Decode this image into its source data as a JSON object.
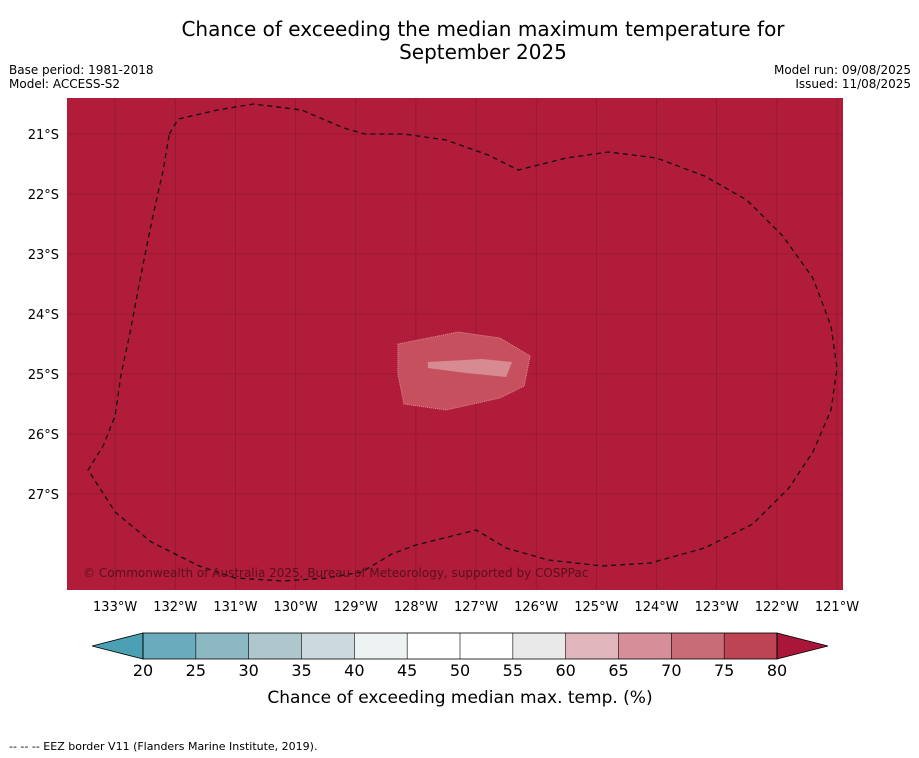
{
  "title": "Chance of exceeding the median maximum temperature for",
  "title_line2": "September 2025",
  "meta": {
    "base_period": "Base period: 1981-2018",
    "model": "Model: ACCESS-S2",
    "model_run": "Model run: 09/08/2025",
    "issued": "Issued: 11/08/2025"
  },
  "copyright": "© Commonwealth of Australia 2025, Bureau of Meteorology, supported by COSPPac",
  "footer": "--  --  -- EEZ border V11 (Flanders Marine Institute, 2019).",
  "colors": {
    "map_fill": "#b01c3a",
    "grid": "#7a1628",
    "anomaly_outer": "#c7505f",
    "anomaly_inner": "#d78a92"
  },
  "chart_data": {
    "type": "heatmap",
    "xlim": [
      -133.8,
      -120.9
    ],
    "ylim": [
      -28.6,
      -20.4
    ],
    "x_ticks": [
      -133,
      -132,
      -131,
      -130,
      -129,
      -128,
      -127,
      -126,
      -125,
      -124,
      -123,
      -122,
      -121
    ],
    "x_tick_labels": [
      "133°W",
      "132°W",
      "131°W",
      "130°W",
      "129°W",
      "128°W",
      "127°W",
      "126°W",
      "125°W",
      "124°W",
      "123°W",
      "122°W",
      "121°W"
    ],
    "y_ticks": [
      -21,
      -22,
      -23,
      -24,
      -25,
      -26,
      -27
    ],
    "y_tick_labels": [
      "21°S",
      "22°S",
      "23°S",
      "24°S",
      "25°S",
      "26°S",
      "27°S"
    ],
    "field_value_category": ">80",
    "anomaly_region": {
      "category": "70-75",
      "polygon": [
        [
          -128.3,
          -24.5
        ],
        [
          -127.3,
          -24.3
        ],
        [
          -126.6,
          -24.4
        ],
        [
          -126.1,
          -24.7
        ],
        [
          -126.2,
          -25.2
        ],
        [
          -126.6,
          -25.4
        ],
        [
          -127.5,
          -25.6
        ],
        [
          -128.2,
          -25.5
        ],
        [
          -128.3,
          -25.0
        ]
      ]
    },
    "anomaly_core": {
      "category": "65-70",
      "polygon": [
        [
          -127.8,
          -24.8
        ],
        [
          -126.9,
          -24.75
        ],
        [
          -126.4,
          -24.8
        ],
        [
          -126.5,
          -25.05
        ],
        [
          -127.2,
          -24.98
        ],
        [
          -127.8,
          -24.9
        ]
      ]
    },
    "eez_border": [
      [
        -132.1,
        -21.0
      ],
      [
        -131.95,
        -20.75
      ],
      [
        -131.3,
        -20.6
      ],
      [
        -130.7,
        -20.5
      ],
      [
        -129.9,
        -20.6
      ],
      [
        -129.2,
        -20.9
      ],
      [
        -128.85,
        -21.0
      ],
      [
        -128.2,
        -21.0
      ],
      [
        -127.5,
        -21.1
      ],
      [
        -126.8,
        -21.35
      ],
      [
        -126.3,
        -21.6
      ],
      [
        -125.5,
        -21.4
      ],
      [
        -124.8,
        -21.3
      ],
      [
        -124.0,
        -21.4
      ],
      [
        -123.2,
        -21.7
      ],
      [
        -122.5,
        -22.1
      ],
      [
        -121.9,
        -22.7
      ],
      [
        -121.4,
        -23.4
      ],
      [
        -121.1,
        -24.2
      ],
      [
        -121.0,
        -24.9
      ],
      [
        -121.1,
        -25.6
      ],
      [
        -121.4,
        -26.3
      ],
      [
        -121.8,
        -26.9
      ],
      [
        -122.4,
        -27.5
      ],
      [
        -123.2,
        -27.9
      ],
      [
        -124.1,
        -28.15
      ],
      [
        -124.9,
        -28.2
      ],
      [
        -125.8,
        -28.1
      ],
      [
        -126.5,
        -27.9
      ],
      [
        -127.0,
        -27.6
      ],
      [
        -127.6,
        -27.75
      ],
      [
        -128.0,
        -27.85
      ],
      [
        -128.4,
        -28.0
      ],
      [
        -128.9,
        -28.3
      ],
      [
        -129.5,
        -28.4
      ],
      [
        -130.2,
        -28.45
      ],
      [
        -131.0,
        -28.4
      ],
      [
        -131.6,
        -28.2
      ],
      [
        -132.4,
        -27.8
      ],
      [
        -133.0,
        -27.3
      ],
      [
        -133.45,
        -26.6
      ],
      [
        -133.2,
        -26.2
      ],
      [
        -133.0,
        -25.7
      ],
      [
        -132.9,
        -25.0
      ],
      [
        -132.75,
        -24.3
      ],
      [
        -132.6,
        -23.5
      ],
      [
        -132.4,
        -22.5
      ],
      [
        -132.2,
        -21.6
      ]
    ],
    "colorbar": {
      "label": "Chance of exceeding median max. temp. (%)",
      "ticks": [
        "20",
        "25",
        "30",
        "35",
        "40",
        "45",
        "50",
        "55",
        "60",
        "65",
        "70",
        "75",
        "80"
      ],
      "colors": [
        "#6aacbd",
        "#8cb8c4",
        "#adc7cc",
        "#ccdadf",
        "#edf2f3",
        "#ffffff",
        "#ffffff",
        "#e9e9ea",
        "#e0b5bc",
        "#d68f98",
        "#c86c78",
        "#bc4453"
      ],
      "under_color": "#4ba1b3",
      "over_color": "#a9163a"
    }
  }
}
